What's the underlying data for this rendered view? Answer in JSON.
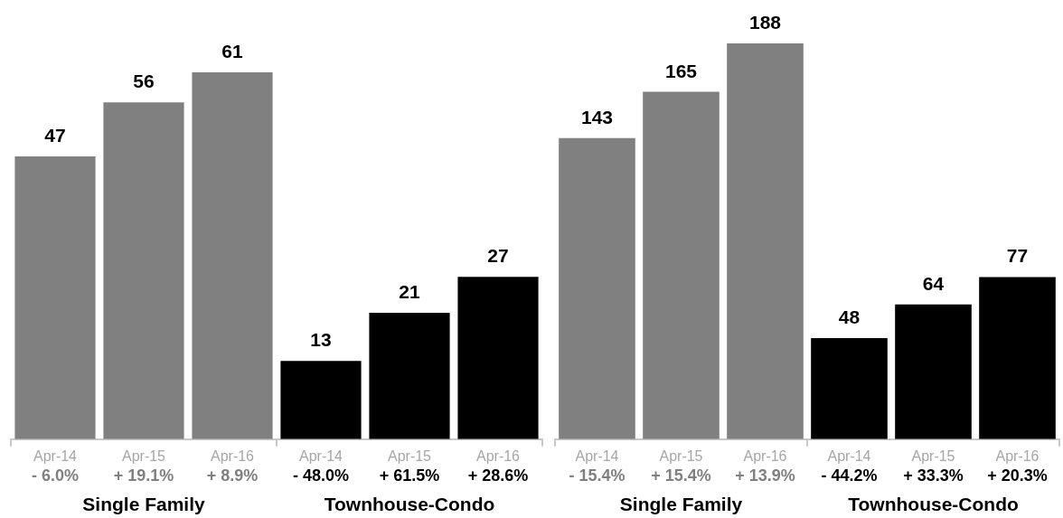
{
  "chart_data": [
    {
      "type": "bar",
      "categories": [
        "Apr-14",
        "Apr-15",
        "Apr-16",
        "Apr-14",
        "Apr-15",
        "Apr-16"
      ],
      "series": [
        {
          "name": "Single Family",
          "color": "#808080",
          "values": [
            47,
            56,
            61,
            null,
            null,
            null
          ]
        },
        {
          "name": "Townhouse-Condo",
          "color": "#000000",
          "values": [
            null,
            null,
            null,
            13,
            21,
            27
          ]
        }
      ],
      "data_labels": true,
      "tick_labels": "x",
      "annotations": [
        "- 6.0%",
        "+ 19.1%",
        "+ 8.9%",
        "- 48.0%",
        "+ 61.5%",
        "+ 28.6%"
      ]
    },
    {
      "type": "bar",
      "categories": [
        "Apr-14",
        "Apr-15",
        "Apr-16",
        "Apr-14",
        "Apr-15",
        "Apr-16"
      ],
      "series": [
        {
          "name": "Single Family",
          "color": "#808080",
          "values": [
            143,
            165,
            188,
            null,
            null,
            null
          ]
        },
        {
          "name": "Townhouse-Condo",
          "color": "#000000",
          "values": [
            null,
            null,
            null,
            48,
            64,
            77
          ]
        }
      ],
      "data_labels": true,
      "tick_labels": "x",
      "annotations": [
        "- 15.4%",
        "+ 15.4%",
        "+ 13.9%",
        "- 44.2%",
        "+ 33.3%",
        "+ 20.3%"
      ]
    }
  ]
}
